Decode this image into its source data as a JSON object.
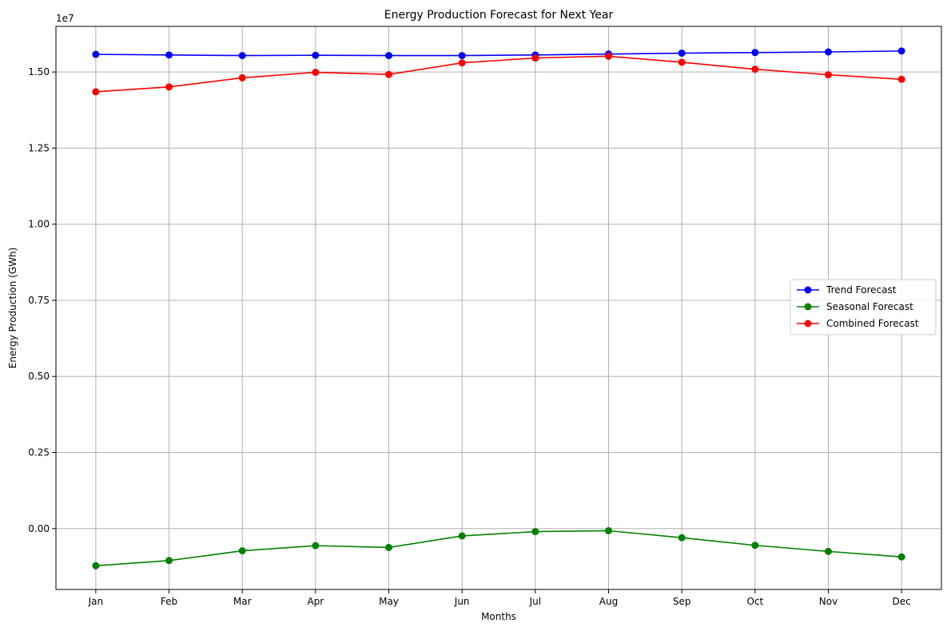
{
  "chart_data": {
    "type": "line",
    "title": "Energy Production Forecast for Next Year",
    "xlabel": "Months",
    "ylabel": "Energy Production (GWh)",
    "y_offset_label": "1e7",
    "categories": [
      "Jan",
      "Feb",
      "Mar",
      "Apr",
      "May",
      "Jun",
      "Jul",
      "Aug",
      "Sep",
      "Oct",
      "Nov",
      "Dec"
    ],
    "yticks": [
      0.0,
      2500000,
      5000000,
      7500000,
      10000000,
      12500000,
      15000000
    ],
    "ytick_labels": [
      "0.00",
      "0.25",
      "0.50",
      "0.75",
      "1.00",
      "1.25",
      "1.50"
    ],
    "ylim": [
      -2000000,
      16500000
    ],
    "grid": true,
    "legend_position": "center-right",
    "series": [
      {
        "name": "Trend Forecast",
        "color": "#0000ff",
        "values": [
          15580000,
          15560000,
          15540000,
          15550000,
          15540000,
          15540000,
          15560000,
          15590000,
          15620000,
          15640000,
          15660000,
          15690000
        ]
      },
      {
        "name": "Seasonal Forecast",
        "color": "#008000",
        "values": [
          -1220000,
          -1050000,
          -730000,
          -560000,
          -620000,
          -240000,
          -100000,
          -70000,
          -300000,
          -550000,
          -750000,
          -930000
        ]
      },
      {
        "name": "Combined Forecast",
        "color": "#ff0000",
        "values": [
          14350000,
          14510000,
          14810000,
          14990000,
          14920000,
          15300000,
          15460000,
          15520000,
          15320000,
          15090000,
          14910000,
          14760000
        ]
      }
    ]
  }
}
